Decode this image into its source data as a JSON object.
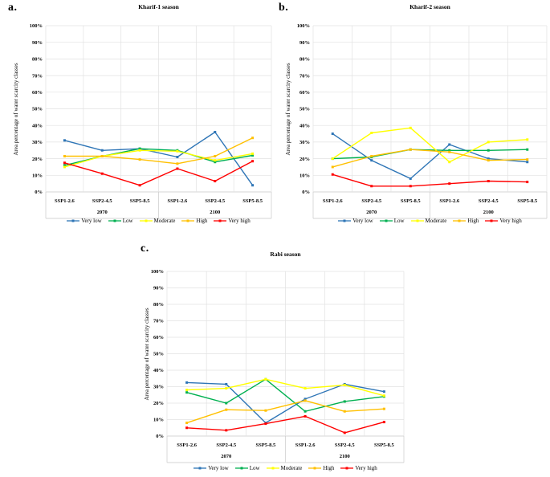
{
  "style": {
    "background": "#ffffff",
    "grid_color": "#e2e2e2",
    "axis_color": "#c9c9c9",
    "text_color": "#000000",
    "series_colors": {
      "very_low": "#2E75B6",
      "low": "#00B050",
      "moderate": "#FFFF00",
      "high": "#FFC000",
      "very_high": "#FF0000"
    }
  },
  "chart_data": [
    {
      "id": "kharif-1",
      "type": "line",
      "panel_label": "a.",
      "title": "Kharif-1 season",
      "ylabel": "Area percentage of water scarcity classes",
      "categories": [
        "SSP1-2.6",
        "SSP2-4.5",
        "SSP5-8.5",
        "SSP1-2.6",
        "SSP2-4.5",
        "SSP5-8.5"
      ],
      "group_labels": [
        "2070",
        "2100"
      ],
      "ylim": [
        0,
        100
      ],
      "ytick_labels": [
        "0%",
        "10%",
        "20%",
        "30%",
        "40%",
        "50%",
        "60%",
        "70%",
        "80%",
        "90%",
        "100%"
      ],
      "grid": true,
      "legend_position": "bottom",
      "series": [
        {
          "name": "Very low",
          "color": "#2E75B6",
          "values": [
            31,
            25,
            26,
            21,
            36,
            4
          ]
        },
        {
          "name": "Low",
          "color": "#00B050",
          "values": [
            16,
            21.5,
            26,
            25,
            18,
            22
          ]
        },
        {
          "name": "Moderate",
          "color": "#FFFF00",
          "values": [
            15,
            21.5,
            25,
            24.5,
            19,
            23
          ]
        },
        {
          "name": "High",
          "color": "#FFC000",
          "values": [
            21.5,
            21.5,
            19.5,
            17,
            21.5,
            32.5
          ]
        },
        {
          "name": "Very high",
          "color": "#FF0000",
          "values": [
            17.5,
            11,
            4,
            14,
            6.5,
            18.5
          ]
        }
      ]
    },
    {
      "id": "kharif-2",
      "type": "line",
      "panel_label": "b.",
      "title": "Kharif-2 season",
      "ylabel": "Area percentage of water scarcity classes",
      "categories": [
        "SSP1-2.6",
        "SSP2-4.5",
        "SSP5-8.5",
        "SSP1-2.6",
        "SSP2-4.5",
        "SSP5-8.5"
      ],
      "group_labels": [
        "2070",
        "2100"
      ],
      "ylim": [
        0,
        100
      ],
      "ytick_labels": [
        "0%",
        "10%",
        "20%",
        "30%",
        "40%",
        "50%",
        "60%",
        "70%",
        "80%",
        "90%",
        "100%"
      ],
      "grid": true,
      "legend_position": "bottom",
      "series": [
        {
          "name": "Very low",
          "color": "#2E75B6",
          "values": [
            35,
            19,
            8,
            28.5,
            20,
            18
          ]
        },
        {
          "name": "Low",
          "color": "#00B050",
          "values": [
            20,
            21,
            25.5,
            25,
            25,
            25.5
          ]
        },
        {
          "name": "Moderate",
          "color": "#FFFF00",
          "values": [
            20,
            35.5,
            38.5,
            18,
            30,
            31.5
          ]
        },
        {
          "name": "High",
          "color": "#FFC000",
          "values": [
            15,
            21.5,
            25.5,
            24,
            19,
            19.5
          ]
        },
        {
          "name": "Very high",
          "color": "#FF0000",
          "values": [
            10.5,
            3.5,
            3.5,
            5,
            6.5,
            6
          ]
        }
      ]
    },
    {
      "id": "rabi",
      "type": "line",
      "panel_label": "c.",
      "title": "Rabi season",
      "ylabel": "Area percentage of water scarcity classes",
      "categories": [
        "SSP1-2.6",
        "SSP2-4.5",
        "SSP5-8.5",
        "SSP1-2.6",
        "SSP2-4.5",
        "SSP5-8.5"
      ],
      "group_labels": [
        "2070",
        "2100"
      ],
      "ylim": [
        0,
        100
      ],
      "ytick_labels": [
        "0%",
        "10%",
        "20%",
        "30%",
        "40%",
        "50%",
        "60%",
        "70%",
        "80%",
        "90%",
        "100%"
      ],
      "grid": true,
      "legend_position": "bottom",
      "series": [
        {
          "name": "Very low",
          "color": "#2E75B6",
          "values": [
            32.5,
            31.5,
            8,
            22.5,
            31.5,
            27
          ]
        },
        {
          "name": "Low",
          "color": "#00B050",
          "values": [
            26.5,
            20,
            34.5,
            15,
            21,
            24
          ]
        },
        {
          "name": "Moderate",
          "color": "#FFFF00",
          "values": [
            28,
            29,
            34.5,
            29,
            31,
            24.5
          ]
        },
        {
          "name": "High",
          "color": "#FFC000",
          "values": [
            8,
            16,
            15.5,
            21.5,
            15,
            16.5
          ]
        },
        {
          "name": "Very high",
          "color": "#FF0000",
          "values": [
            5,
            3.5,
            7.5,
            12,
            2,
            8.5
          ]
        }
      ]
    }
  ]
}
